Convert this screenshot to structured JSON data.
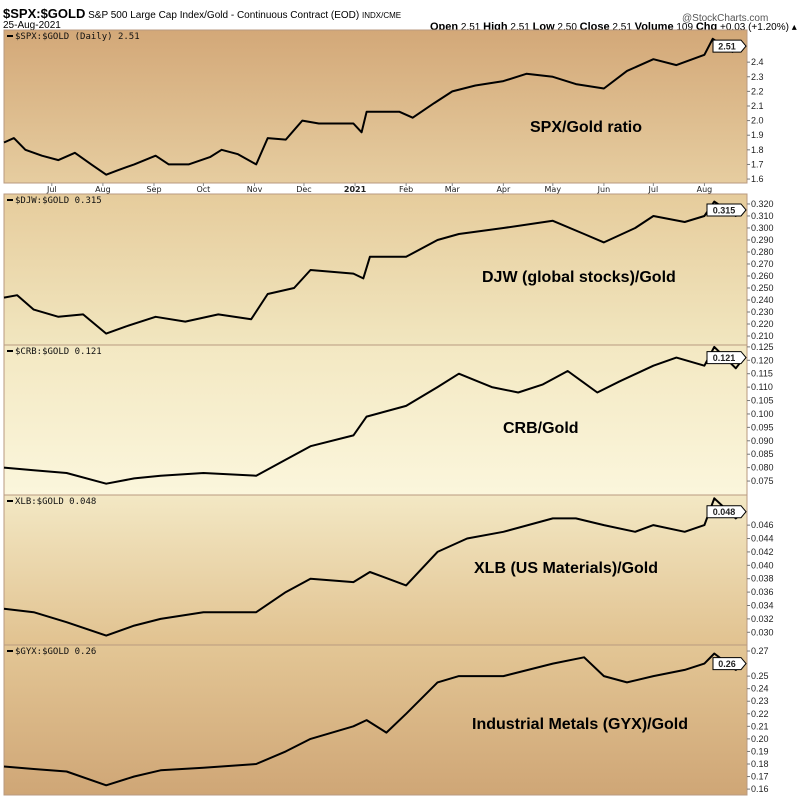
{
  "header": {
    "symbol": "$SPX:$GOLD",
    "description": "S&P 500 Large Cap Index/Gold - Continuous Contract (EOD)",
    "exchange": "INDX/CME",
    "date": "25-Aug-2021",
    "brand": "@StockCharts.com",
    "open_label": "Open",
    "open": "2.51",
    "high_label": "High",
    "high": "2.51",
    "low_label": "Low",
    "low": "2.50",
    "close_label": "Close",
    "close": "2.51",
    "volume_label": "Volume",
    "volume": "109",
    "chg_label": "Chg",
    "chg": "+0.03 (+1.20%)"
  },
  "chart_data": {
    "type": "line",
    "x_range": [
      "2020-06-02",
      "2021-08-25"
    ],
    "month_labels": [
      {
        "date": "2020-07-01",
        "label": "Jul"
      },
      {
        "date": "2020-08-01",
        "label": "Aug"
      },
      {
        "date": "2020-09-01",
        "label": "Sep"
      },
      {
        "date": "2020-10-01",
        "label": "Oct"
      },
      {
        "date": "2020-11-01",
        "label": "Nov"
      },
      {
        "date": "2020-12-01",
        "label": "Dec"
      },
      {
        "date": "2021-01-01",
        "label": "2021",
        "bold": true
      },
      {
        "date": "2021-02-01",
        "label": "Feb"
      },
      {
        "date": "2021-03-01",
        "label": "Mar"
      },
      {
        "date": "2021-04-01",
        "label": "Apr"
      },
      {
        "date": "2021-05-01",
        "label": "May"
      },
      {
        "date": "2021-06-01",
        "label": "Jun"
      },
      {
        "date": "2021-07-01",
        "label": "Jul"
      },
      {
        "date": "2021-08-01",
        "label": "Aug"
      }
    ],
    "line_color": "#000000",
    "panels": [
      {
        "legend": "$SPX:$GOLD (Daily) 2.51",
        "annotation": "SPX/Gold ratio",
        "last_value": "2.51",
        "ylim": [
          1.573,
          2.62
        ],
        "ticks": [
          "1.6",
          "1.7",
          "1.8",
          "1.9",
          "2.0",
          "2.1",
          "2.2",
          "2.3",
          "2.4"
        ],
        "bg": [
          "#d3a878",
          "#e6cda0"
        ],
        "points": [
          [
            "2020-06-02",
            1.85
          ],
          [
            "2020-06-08",
            1.88
          ],
          [
            "2020-06-15",
            1.8
          ],
          [
            "2020-06-25",
            1.76
          ],
          [
            "2020-07-05",
            1.73
          ],
          [
            "2020-07-15",
            1.78
          ],
          [
            "2020-07-25",
            1.7
          ],
          [
            "2020-08-03",
            1.63
          ],
          [
            "2020-08-10",
            1.66
          ],
          [
            "2020-08-20",
            1.7
          ],
          [
            "2020-09-02",
            1.76
          ],
          [
            "2020-09-10",
            1.7
          ],
          [
            "2020-09-22",
            1.7
          ],
          [
            "2020-10-05",
            1.75
          ],
          [
            "2020-10-12",
            1.8
          ],
          [
            "2020-10-22",
            1.77
          ],
          [
            "2020-11-02",
            1.7
          ],
          [
            "2020-11-09",
            1.88
          ],
          [
            "2020-11-20",
            1.87
          ],
          [
            "2020-11-30",
            2.0
          ],
          [
            "2020-12-10",
            1.98
          ],
          [
            "2020-12-31",
            1.98
          ],
          [
            "2021-01-05",
            1.92
          ],
          [
            "2021-01-08",
            2.06
          ],
          [
            "2021-01-28",
            2.06
          ],
          [
            "2021-02-05",
            2.02
          ],
          [
            "2021-02-18",
            2.12
          ],
          [
            "2021-03-01",
            2.2
          ],
          [
            "2021-03-15",
            2.24
          ],
          [
            "2021-04-01",
            2.27
          ],
          [
            "2021-04-15",
            2.32
          ],
          [
            "2021-05-01",
            2.3
          ],
          [
            "2021-05-15",
            2.25
          ],
          [
            "2021-06-01",
            2.22
          ],
          [
            "2021-06-15",
            2.34
          ],
          [
            "2021-07-01",
            2.42
          ],
          [
            "2021-07-15",
            2.38
          ],
          [
            "2021-08-01",
            2.45
          ],
          [
            "2021-08-06",
            2.56
          ],
          [
            "2021-08-18",
            2.47
          ],
          [
            "2021-08-25",
            2.51
          ]
        ]
      },
      {
        "legend": "$DJW:$GOLD 0.315",
        "annotation": "DJW (global stocks)/Gold",
        "last_value": "0.315",
        "ylim": [
          0.2025,
          0.3283
        ],
        "ticks": [
          "0.210",
          "0.220",
          "0.230",
          "0.240",
          "0.250",
          "0.260",
          "0.270",
          "0.280",
          "0.290",
          "0.300",
          "0.310",
          "0.320"
        ],
        "bg": [
          "#e6cc9c",
          "#f1e6bf"
        ],
        "points": [
          [
            "2020-06-02",
            0.242
          ],
          [
            "2020-06-10",
            0.244
          ],
          [
            "2020-06-20",
            0.232
          ],
          [
            "2020-07-05",
            0.226
          ],
          [
            "2020-07-20",
            0.228
          ],
          [
            "2020-08-03",
            0.212
          ],
          [
            "2020-08-15",
            0.218
          ],
          [
            "2020-09-02",
            0.226
          ],
          [
            "2020-09-20",
            0.222
          ],
          [
            "2020-10-10",
            0.228
          ],
          [
            "2020-10-30",
            0.224
          ],
          [
            "2020-11-09",
            0.245
          ],
          [
            "2020-11-25",
            0.25
          ],
          [
            "2020-12-05",
            0.265
          ],
          [
            "2020-12-31",
            0.262
          ],
          [
            "2021-01-06",
            0.258
          ],
          [
            "2021-01-10",
            0.276
          ],
          [
            "2021-02-01",
            0.276
          ],
          [
            "2021-02-20",
            0.29
          ],
          [
            "2021-03-05",
            0.295
          ],
          [
            "2021-04-01",
            0.3
          ],
          [
            "2021-05-01",
            0.306
          ],
          [
            "2021-05-20",
            0.295
          ],
          [
            "2021-06-01",
            0.288
          ],
          [
            "2021-06-20",
            0.3
          ],
          [
            "2021-07-01",
            0.31
          ],
          [
            "2021-07-20",
            0.305
          ],
          [
            "2021-08-01",
            0.31
          ],
          [
            "2021-08-07",
            0.322
          ],
          [
            "2021-08-20",
            0.31
          ],
          [
            "2021-08-25",
            0.315
          ]
        ]
      },
      {
        "legend": "$CRB:$GOLD 0.121",
        "annotation": "CRB/Gold",
        "last_value": "0.121",
        "ylim": [
          0.0698,
          0.1257
        ],
        "ticks": [
          "0.075",
          "0.080",
          "0.085",
          "0.090",
          "0.095",
          "0.100",
          "0.105",
          "0.110",
          "0.115",
          "0.120",
          "0.125"
        ],
        "bg": [
          "#f3e8c2",
          "#fbf6dc"
        ],
        "points": [
          [
            "2020-06-02",
            0.08
          ],
          [
            "2020-06-20",
            0.079
          ],
          [
            "2020-07-10",
            0.078
          ],
          [
            "2020-08-03",
            0.074
          ],
          [
            "2020-08-20",
            0.076
          ],
          [
            "2020-09-05",
            0.077
          ],
          [
            "2020-10-01",
            0.078
          ],
          [
            "2020-11-02",
            0.077
          ],
          [
            "2020-11-20",
            0.083
          ],
          [
            "2020-12-05",
            0.088
          ],
          [
            "2020-12-31",
            0.092
          ],
          [
            "2021-01-08",
            0.099
          ],
          [
            "2021-02-01",
            0.103
          ],
          [
            "2021-02-20",
            0.11
          ],
          [
            "2021-03-05",
            0.115
          ],
          [
            "2021-03-25",
            0.11
          ],
          [
            "2021-04-10",
            0.108
          ],
          [
            "2021-04-25",
            0.111
          ],
          [
            "2021-05-10",
            0.116
          ],
          [
            "2021-05-28",
            0.108
          ],
          [
            "2021-06-10",
            0.112
          ],
          [
            "2021-07-01",
            0.118
          ],
          [
            "2021-07-15",
            0.121
          ],
          [
            "2021-08-01",
            0.118
          ],
          [
            "2021-08-07",
            0.125
          ],
          [
            "2021-08-20",
            0.117
          ],
          [
            "2021-08-25",
            0.121
          ]
        ]
      },
      {
        "legend": "XLB:$GOLD 0.048",
        "annotation": "XLB (US Materials)/Gold",
        "last_value": "0.048",
        "ylim": [
          0.0281,
          0.0505
        ],
        "ticks": [
          "0.030",
          "0.032",
          "0.034",
          "0.036",
          "0.038",
          "0.040",
          "0.042",
          "0.044",
          "0.046"
        ],
        "bg": [
          "#f3e8c4",
          "#e1c290"
        ],
        "points": [
          [
            "2020-06-02",
            0.0335
          ],
          [
            "2020-06-20",
            0.033
          ],
          [
            "2020-07-10",
            0.0315
          ],
          [
            "2020-08-03",
            0.0295
          ],
          [
            "2020-08-20",
            0.031
          ],
          [
            "2020-09-05",
            0.032
          ],
          [
            "2020-10-01",
            0.033
          ],
          [
            "2020-11-02",
            0.033
          ],
          [
            "2020-11-20",
            0.036
          ],
          [
            "2020-12-05",
            0.038
          ],
          [
            "2020-12-31",
            0.0375
          ],
          [
            "2021-01-10",
            0.039
          ],
          [
            "2021-02-01",
            0.037
          ],
          [
            "2021-02-20",
            0.042
          ],
          [
            "2021-03-10",
            0.044
          ],
          [
            "2021-04-01",
            0.045
          ],
          [
            "2021-05-01",
            0.047
          ],
          [
            "2021-05-15",
            0.047
          ],
          [
            "2021-06-01",
            0.046
          ],
          [
            "2021-06-20",
            0.045
          ],
          [
            "2021-07-01",
            0.046
          ],
          [
            "2021-07-20",
            0.045
          ],
          [
            "2021-08-01",
            0.046
          ],
          [
            "2021-08-07",
            0.05
          ],
          [
            "2021-08-20",
            0.047
          ],
          [
            "2021-08-25",
            0.048
          ]
        ]
      },
      {
        "legend": "$GYX:$GOLD 0.26",
        "annotation": "Industrial Metals (GYX)/Gold",
        "last_value": "0.26",
        "ylim": [
          0.1553,
          0.2748
        ],
        "ticks": [
          "0.16",
          "0.17",
          "0.18",
          "0.19",
          "0.20",
          "0.21",
          "0.22",
          "0.23",
          "0.24",
          "0.25",
          "0.27"
        ],
        "bg": [
          "#e3c695",
          "#cfa676"
        ],
        "points": [
          [
            "2020-06-02",
            0.178
          ],
          [
            "2020-06-20",
            0.176
          ],
          [
            "2020-07-10",
            0.174
          ],
          [
            "2020-08-03",
            0.163
          ],
          [
            "2020-08-20",
            0.17
          ],
          [
            "2020-09-05",
            0.175
          ],
          [
            "2020-10-01",
            0.177
          ],
          [
            "2020-11-02",
            0.18
          ],
          [
            "2020-11-20",
            0.19
          ],
          [
            "2020-12-05",
            0.2
          ],
          [
            "2020-12-31",
            0.21
          ],
          [
            "2021-01-08",
            0.215
          ],
          [
            "2021-01-20",
            0.205
          ],
          [
            "2021-02-01",
            0.22
          ],
          [
            "2021-02-20",
            0.245
          ],
          [
            "2021-03-05",
            0.25
          ],
          [
            "2021-04-01",
            0.25
          ],
          [
            "2021-05-01",
            0.26
          ],
          [
            "2021-05-20",
            0.265
          ],
          [
            "2021-06-01",
            0.25
          ],
          [
            "2021-06-15",
            0.245
          ],
          [
            "2021-07-01",
            0.25
          ],
          [
            "2021-07-20",
            0.255
          ],
          [
            "2021-08-01",
            0.26
          ],
          [
            "2021-08-07",
            0.268
          ],
          [
            "2021-08-20",
            0.255
          ],
          [
            "2021-08-25",
            0.26
          ]
        ]
      }
    ]
  }
}
